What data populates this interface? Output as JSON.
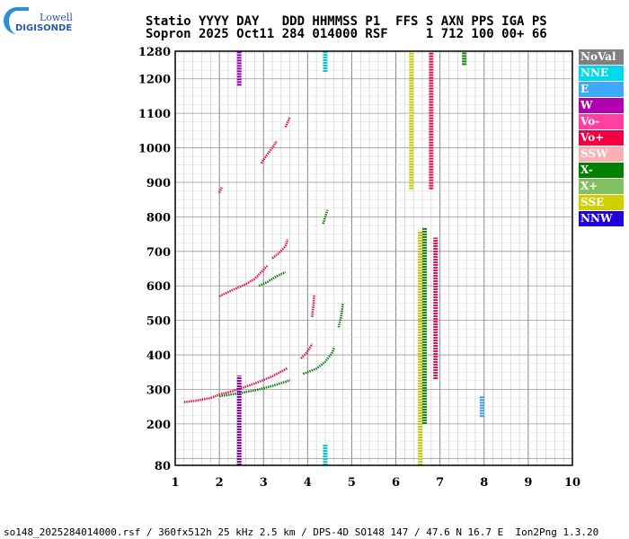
{
  "logo": {
    "line1": "Lowell",
    "line2": "DIGISONDE"
  },
  "header": {
    "line1": "Statio YYYY DAY   DDD HHMMSS P1  FFS S AXN PPS IGA PS",
    "line2": "Sopron 2025 Oct11 284 014000 RSF     1 712 100 00+ 66"
  },
  "footer": "so148_2025284014000.rsf / 360fx512h 25 kHz 2.5 km / DPS-4D SO148 147 / 47.6 N 16.7 E  Ion2Png 1.3.20",
  "legend": [
    {
      "label": "NoVal",
      "color": "#808080"
    },
    {
      "label": "NNE",
      "color": "#00d8f0"
    },
    {
      "label": "E",
      "color": "#40a8f8"
    },
    {
      "label": "W",
      "color": "#b000b0"
    },
    {
      "label": "Vo-",
      "color": "#ff40a0"
    },
    {
      "label": "Vo+",
      "color": "#f00040"
    },
    {
      "label": "SSW",
      "color": "#f8b0b0"
    },
    {
      "label": "X-",
      "color": "#008000"
    },
    {
      "label": "X+",
      "color": "#80c060"
    },
    {
      "label": "SSE",
      "color": "#d0d000"
    },
    {
      "label": "NNW",
      "color": "#2000e0"
    }
  ],
  "chart_data": {
    "type": "scatter",
    "xlim": [
      1,
      10
    ],
    "ylim": [
      80,
      1280
    ],
    "xticks": [
      "1",
      "2",
      "3",
      "4",
      "5",
      "6",
      "7",
      "8",
      "9",
      "10"
    ],
    "yticks": [
      "80",
      "200",
      "300",
      "400",
      "500",
      "600",
      "700",
      "800",
      "900",
      "1000",
      "1100",
      "1200",
      "1280"
    ],
    "grid": true,
    "legend_position": "right",
    "traces": [
      {
        "name": "Vo+",
        "color": "#e0105a",
        "points": [
          [
            1.2,
            263
          ],
          [
            1.5,
            268
          ],
          [
            1.8,
            275
          ],
          [
            2.0,
            285
          ],
          [
            2.3,
            295
          ],
          [
            2.6,
            308
          ],
          [
            2.9,
            322
          ],
          [
            3.2,
            338
          ],
          [
            3.45,
            355
          ],
          [
            3.55,
            362
          ]
        ]
      },
      {
        "name": "Vo+",
        "color": "#e0105a",
        "points": [
          [
            3.85,
            390
          ],
          [
            3.95,
            402
          ],
          [
            4.05,
            420
          ],
          [
            4.1,
            432
          ]
        ]
      },
      {
        "name": "Vo+",
        "color": "#e0105a",
        "points": [
          [
            4.1,
            510
          ],
          [
            4.12,
            530
          ],
          [
            4.14,
            555
          ],
          [
            4.15,
            575
          ]
        ]
      },
      {
        "name": "Vo+",
        "color": "#e0105a",
        "points": [
          [
            2.0,
            570
          ],
          [
            2.3,
            588
          ],
          [
            2.6,
            605
          ],
          [
            2.8,
            620
          ],
          [
            2.95,
            640
          ],
          [
            3.1,
            660
          ]
        ]
      },
      {
        "name": "Vo+",
        "color": "#e0105a",
        "points": [
          [
            3.2,
            680
          ],
          [
            3.35,
            695
          ],
          [
            3.5,
            715
          ],
          [
            3.55,
            735
          ]
        ]
      },
      {
        "name": "Vo+",
        "color": "#e0105a",
        "points": [
          [
            2.0,
            870
          ],
          [
            2.05,
            885
          ]
        ]
      },
      {
        "name": "Vo+",
        "color": "#e0105a",
        "points": [
          [
            2.95,
            955
          ],
          [
            3.05,
            975
          ],
          [
            3.2,
            1000
          ],
          [
            3.3,
            1020
          ]
        ]
      },
      {
        "name": "Vo+",
        "color": "#e0105a",
        "points": [
          [
            3.5,
            1060
          ],
          [
            3.55,
            1075
          ],
          [
            3.6,
            1090
          ]
        ]
      },
      {
        "name": "X-",
        "color": "#108010",
        "points": [
          [
            2.0,
            280
          ],
          [
            2.4,
            288
          ],
          [
            2.8,
            297
          ],
          [
            3.2,
            310
          ],
          [
            3.5,
            322
          ],
          [
            3.6,
            327
          ]
        ]
      },
      {
        "name": "X-",
        "color": "#108010",
        "points": [
          [
            3.9,
            345
          ],
          [
            4.2,
            360
          ],
          [
            4.4,
            380
          ],
          [
            4.55,
            405
          ],
          [
            4.6,
            420
          ]
        ]
      },
      {
        "name": "X-",
        "color": "#108010",
        "points": [
          [
            4.7,
            480
          ],
          [
            4.75,
            505
          ],
          [
            4.78,
            530
          ],
          [
            4.8,
            548
          ]
        ]
      },
      {
        "name": "X-",
        "color": "#108010",
        "points": [
          [
            2.9,
            600
          ],
          [
            3.1,
            612
          ],
          [
            3.3,
            628
          ],
          [
            3.5,
            640
          ]
        ]
      },
      {
        "name": "X-",
        "color": "#108010",
        "points": [
          [
            4.35,
            780
          ],
          [
            4.4,
            800
          ],
          [
            4.45,
            820
          ]
        ]
      },
      {
        "name": "SSE",
        "color": "#c8c800",
        "points": [
          [
            6.55,
            80
          ],
          [
            6.55,
            760
          ]
        ]
      },
      {
        "name": "SSE",
        "color": "#c8c800",
        "points": [
          [
            6.35,
            880
          ],
          [
            6.35,
            1280
          ]
        ]
      },
      {
        "name": "Vo+",
        "color": "#e0105a",
        "points": [
          [
            6.8,
            880
          ],
          [
            6.8,
            1280
          ]
        ]
      },
      {
        "name": "X-",
        "color": "#108010",
        "points": [
          [
            6.65,
            200
          ],
          [
            6.65,
            770
          ]
        ]
      },
      {
        "name": "Vo+",
        "color": "#e0105a",
        "points": [
          [
            6.9,
            330
          ],
          [
            6.9,
            740
          ]
        ]
      },
      {
        "name": "W",
        "color": "#9000b0",
        "points": [
          [
            2.45,
            80
          ],
          [
            2.45,
            340
          ]
        ]
      },
      {
        "name": "W",
        "color": "#9000b0",
        "points": [
          [
            2.45,
            1180
          ],
          [
            2.45,
            1280
          ]
        ]
      },
      {
        "name": "NNE",
        "color": "#00c8e0",
        "points": [
          [
            4.4,
            80
          ],
          [
            4.4,
            140
          ]
        ]
      },
      {
        "name": "NNE",
        "color": "#00c8e0",
        "points": [
          [
            4.4,
            1220
          ],
          [
            4.4,
            1280
          ]
        ]
      },
      {
        "name": "E",
        "color": "#40a0f0",
        "points": [
          [
            7.95,
            220
          ],
          [
            7.95,
            280
          ]
        ]
      },
      {
        "name": "X-",
        "color": "#108010",
        "points": [
          [
            7.55,
            1240
          ],
          [
            7.55,
            1280
          ]
        ]
      }
    ]
  }
}
